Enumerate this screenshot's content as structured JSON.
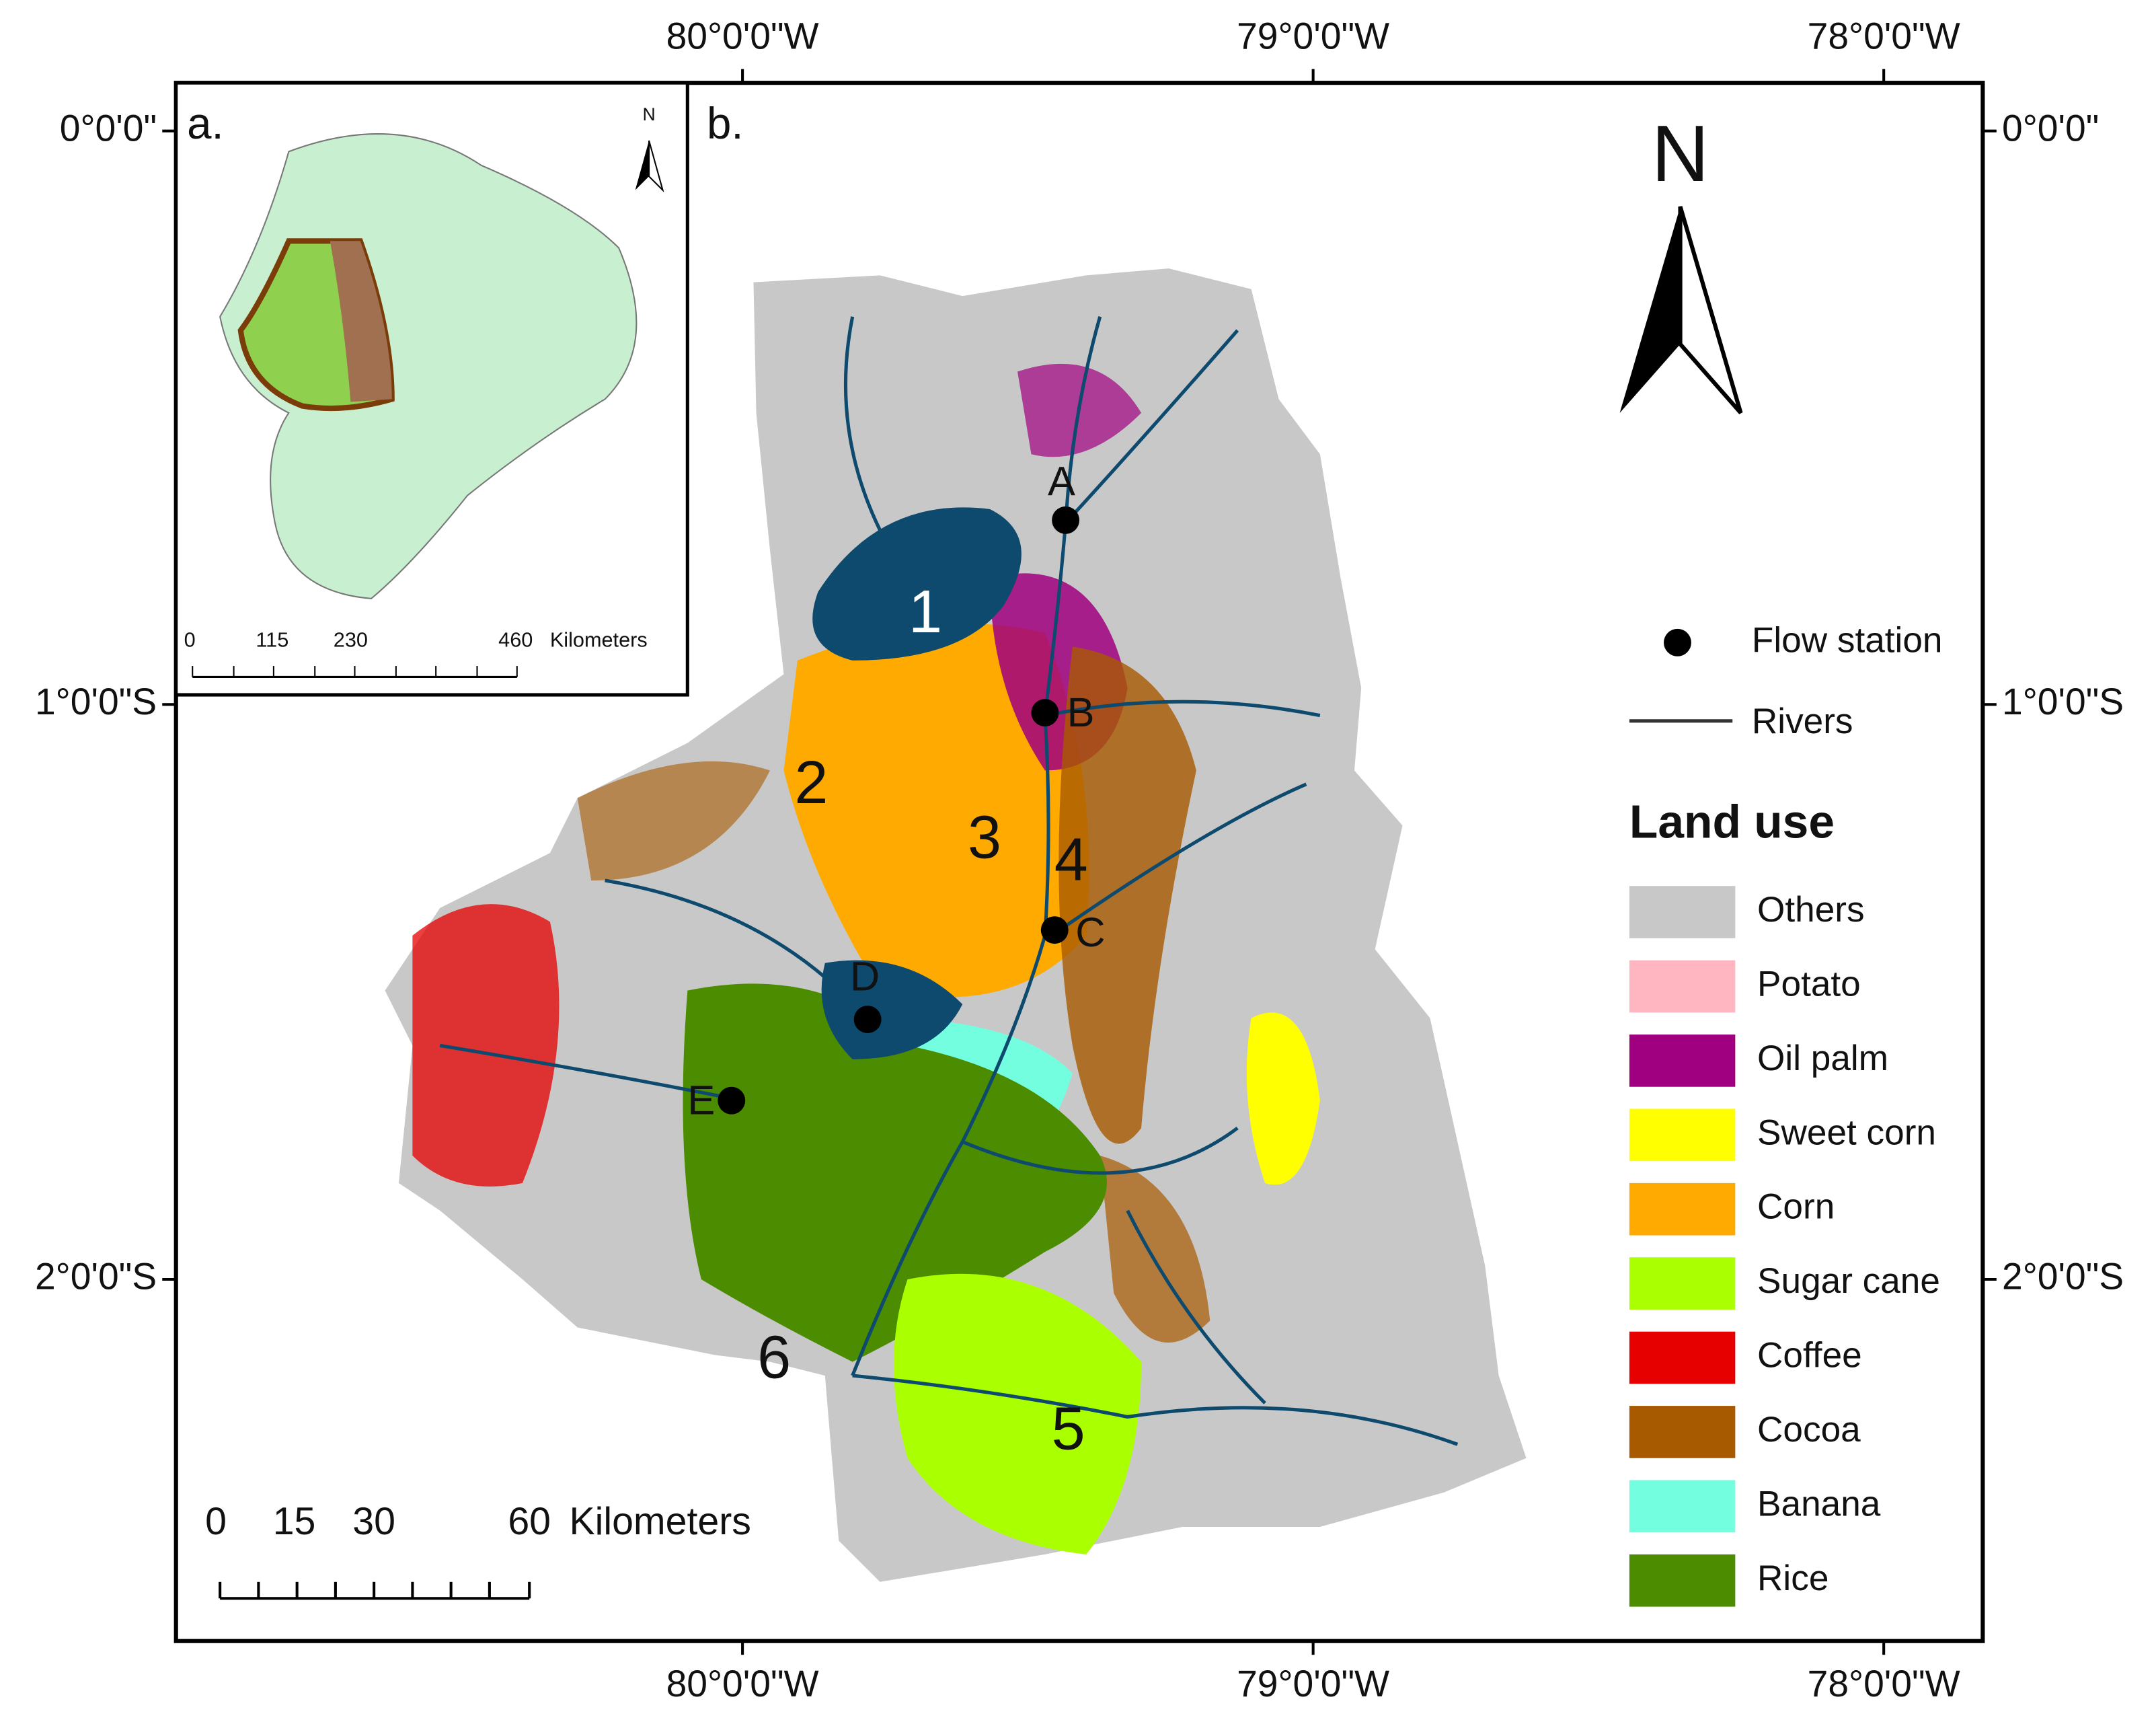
{
  "axes": {
    "top": [
      "80°0'0\"W",
      "79°0'0\"W",
      "78°0'0\"W"
    ],
    "bottom": [
      "80°0'0\"W",
      "79°0'0\"W",
      "78°0'0\"W"
    ],
    "left": [
      "0°0'0\"",
      "1°0'0\"S",
      "2°0'0\"S"
    ],
    "right": [
      "0°0'0\"",
      "1°0'0\"S",
      "2°0'0\"S"
    ]
  },
  "panels": {
    "a": "a.",
    "b": "b."
  },
  "inset": {
    "north": "N",
    "scale_labels": [
      "0",
      "115",
      "230",
      "460"
    ],
    "scale_unit": "Kilometers"
  },
  "north_arrow": "N",
  "legend": {
    "flow_station": "Flow station",
    "rivers": "Rivers",
    "title": "Land use",
    "items": [
      {
        "label": "Others",
        "color": "#c8c8c8"
      },
      {
        "label": "Potato",
        "color": "#ffb6c1"
      },
      {
        "label": "Oil palm",
        "color": "#a0007f"
      },
      {
        "label": "Sweet corn",
        "color": "#ffff00"
      },
      {
        "label": "Corn",
        "color": "#ffaa00"
      },
      {
        "label": "Sugar cane",
        "color": "#aaff00"
      },
      {
        "label": "Coffee",
        "color": "#e60000"
      },
      {
        "label": "Cocoa",
        "color": "#a85a00"
      },
      {
        "label": "Banana",
        "color": "#73ffdf"
      },
      {
        "label": "Rice",
        "color": "#4c8c00"
      }
    ]
  },
  "scale_bar": {
    "labels": [
      "0",
      "15",
      "30",
      "60"
    ],
    "unit": "Kilometers"
  },
  "stations": [
    "A",
    "B",
    "C",
    "D",
    "E"
  ],
  "regions": [
    "1",
    "2",
    "3",
    "4",
    "5",
    "6"
  ]
}
